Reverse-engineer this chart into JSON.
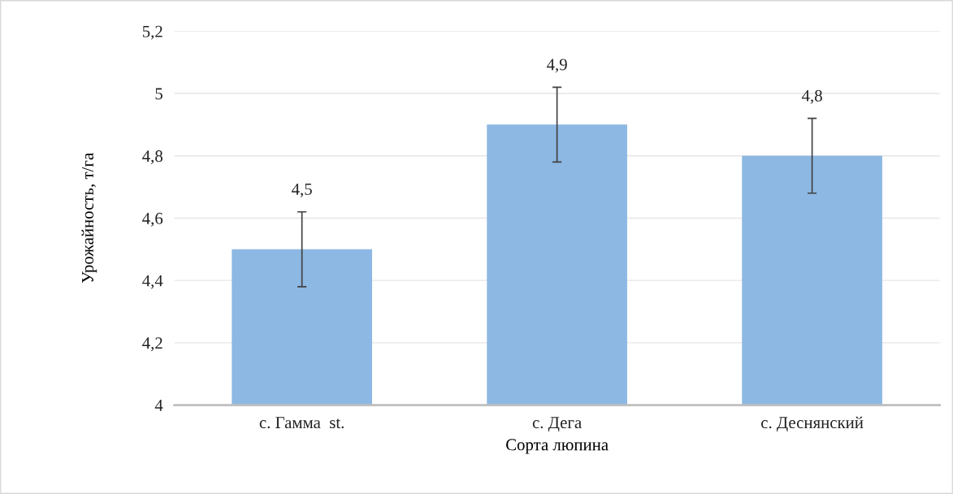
{
  "chart_data": {
    "type": "bar",
    "xlabel": "Сорта люпина",
    "ylabel": "Урожайность, т/га",
    "categories": [
      "с. Гамма  st.",
      "с. Дега",
      "с. Деснянский"
    ],
    "values": [
      4.5,
      4.9,
      4.8
    ],
    "errors": [
      0.12,
      0.12,
      0.12
    ],
    "value_labels": [
      "4,5",
      "4,9",
      "4,8"
    ],
    "color": "#8db8e3",
    "ylim": [
      4,
      5.2
    ],
    "yticks": [
      4,
      {
        "value": 4.2,
        "label": "4,2"
      },
      {
        "value": 4.4,
        "label": "4,4"
      },
      {
        "value": 4.6,
        "label": "4,6"
      },
      {
        "value": 4.8,
        "label": "4,8"
      },
      5,
      {
        "value": 5.2,
        "label": "5,2"
      }
    ],
    "grid": "y",
    "legend": false
  }
}
